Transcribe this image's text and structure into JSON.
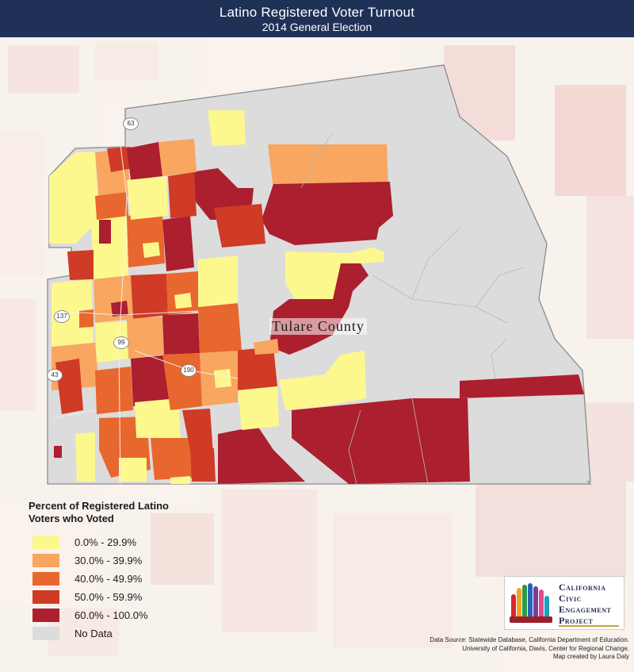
{
  "header": {
    "title": "Latino Registered Voter Turnout",
    "subtitle": "2014 General Election"
  },
  "map": {
    "county_label": "Tulare County",
    "routes": [
      "63",
      "137",
      "99",
      "43",
      "190"
    ]
  },
  "legend": {
    "title": "Percent of Registered Latino Voters who Voted",
    "items": [
      {
        "label": "0.0% - 29.9%",
        "color": "#fdf88e"
      },
      {
        "label": "30.0% - 39.9%",
        "color": "#f8a660"
      },
      {
        "label": "40.0% - 49.9%",
        "color": "#e8672e"
      },
      {
        "label": "50.0% - 59.9%",
        "color": "#cf3b26"
      },
      {
        "label": "60.0% - 100.0%",
        "color": "#ac1f2f"
      },
      {
        "label": "No Data",
        "color": "#dcdcdc"
      }
    ]
  },
  "logo": {
    "line1": "California",
    "line2": "Civic",
    "line3": "Engagement",
    "line4": "Project",
    "icon": "raised-hands-icon"
  },
  "credits": {
    "line1": "Data Source: Statewide Database, California Department of Education.",
    "line2": "University of California, Davis, Center for Regional Change.",
    "line3": "Map created by Laura Daly"
  },
  "colors": {
    "header_bg": "#1f3157",
    "no_data": "#dcdcdc",
    "bucket_0": "#fdf88e",
    "bucket_1": "#f8a660",
    "bucket_2": "#e8672e",
    "bucket_3": "#cf3b26",
    "bucket_4": "#ac1f2f"
  }
}
